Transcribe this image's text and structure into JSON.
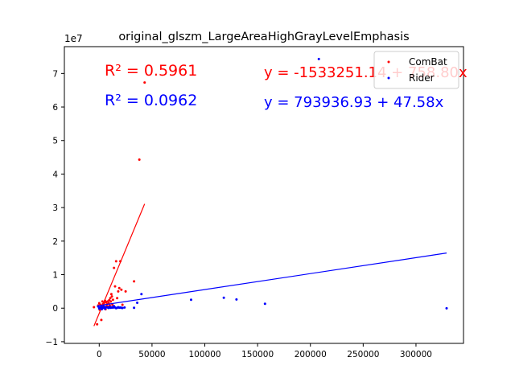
{
  "chart_data": {
    "type": "scatter",
    "title": "original_glszm_LargeAreaHighGrayLevelEmphasis",
    "xlabel": "",
    "ylabel": "",
    "y_offset_label": "1e7",
    "xlim": [
      -33000,
      345000
    ],
    "ylim": [
      -10500000,
      78000000
    ],
    "x_ticks": [
      0,
      50000,
      100000,
      150000,
      200000,
      250000,
      300000
    ],
    "x_tick_labels": [
      "0",
      "50000",
      "100000",
      "150000",
      "200000",
      "250000",
      "300000"
    ],
    "y_ticks": [
      -10000000,
      0,
      10000000,
      20000000,
      30000000,
      40000000,
      50000000,
      60000000,
      70000000
    ],
    "y_tick_labels": [
      "−1",
      "0",
      "1",
      "2",
      "3",
      "4",
      "5",
      "6",
      "7"
    ],
    "grid": false,
    "legend_position": "top-right",
    "series": [
      {
        "name": "ComBat",
        "color": "#ff0000",
        "points": [
          [
            -5000,
            300000
          ],
          [
            -2000,
            -4800000
          ],
          [
            -1000,
            800000
          ],
          [
            0,
            1500000
          ],
          [
            500,
            -500000
          ],
          [
            1000,
            1000000
          ],
          [
            1500,
            300000
          ],
          [
            2000,
            -3500000
          ],
          [
            2500,
            500000
          ],
          [
            3000,
            2000000
          ],
          [
            3500,
            1200000
          ],
          [
            4000,
            800000
          ],
          [
            4500,
            1500000
          ],
          [
            5000,
            200000
          ],
          [
            5500,
            2200000
          ],
          [
            6000,
            -300000
          ],
          [
            6500,
            1800000
          ],
          [
            7000,
            600000
          ],
          [
            7500,
            1200000
          ],
          [
            8000,
            2000000
          ],
          [
            8500,
            400000
          ],
          [
            9000,
            1500000
          ],
          [
            9500,
            2400000
          ],
          [
            10000,
            800000
          ],
          [
            10500,
            3000000
          ],
          [
            11000,
            2000000
          ],
          [
            11500,
            4200000
          ],
          [
            12000,
            3500000
          ],
          [
            12500,
            1000000
          ],
          [
            13000,
            2500000
          ],
          [
            14000,
            12000000
          ],
          [
            15000,
            6500000
          ],
          [
            16000,
            14000000
          ],
          [
            17000,
            3000000
          ],
          [
            18000,
            5000000
          ],
          [
            19000,
            6000000
          ],
          [
            20000,
            14000000
          ],
          [
            21000,
            5500000
          ],
          [
            22000,
            1000000
          ],
          [
            25000,
            5000000
          ],
          [
            33000,
            8000000
          ],
          [
            38000,
            44300000
          ],
          [
            43000,
            67300000
          ]
        ],
        "fit": {
          "equation": "y = -1533251.14 + 758.80x",
          "r2_label": "R² = 0.5961",
          "intercept": -1533251.14,
          "slope": 758.8,
          "x_range": [
            -5000,
            43000
          ]
        }
      },
      {
        "name": "Rider",
        "color": "#0000ff",
        "points": [
          [
            -1000,
            500000
          ],
          [
            0,
            -100000
          ],
          [
            500,
            200000
          ],
          [
            1000,
            100000
          ],
          [
            1500,
            50000
          ],
          [
            2000,
            400000
          ],
          [
            2500,
            -300000
          ],
          [
            3000,
            150000
          ],
          [
            3500,
            300000
          ],
          [
            4000,
            80000
          ],
          [
            4500,
            500000
          ],
          [
            5000,
            200000
          ],
          [
            5500,
            -200000
          ],
          [
            6000,
            100000
          ],
          [
            7000,
            300000
          ],
          [
            8000,
            200000
          ],
          [
            9000,
            50000
          ],
          [
            10000,
            400000
          ],
          [
            11000,
            100000
          ],
          [
            12000,
            250000
          ],
          [
            13000,
            150000
          ],
          [
            14000,
            600000
          ],
          [
            15000,
            200000
          ],
          [
            16000,
            0
          ],
          [
            17000,
            100000
          ],
          [
            18000,
            300000
          ],
          [
            19000,
            150000
          ],
          [
            20000,
            200000
          ],
          [
            21000,
            100000
          ],
          [
            22000,
            50000
          ],
          [
            24000,
            200000
          ],
          [
            33000,
            100000
          ],
          [
            36000,
            1600000
          ],
          [
            40000,
            4200000
          ],
          [
            87000,
            2500000
          ],
          [
            118000,
            3100000
          ],
          [
            130000,
            2600000
          ],
          [
            157000,
            1300000
          ],
          [
            208000,
            74300000
          ],
          [
            329000,
            -50000
          ]
        ],
        "fit": {
          "equation": "y = 793936.93 + 47.58x",
          "r2_label": "R² = 0.0962",
          "intercept": 793936.93,
          "slope": 47.58,
          "x_range": [
            -1000,
            329000
          ]
        }
      }
    ]
  }
}
